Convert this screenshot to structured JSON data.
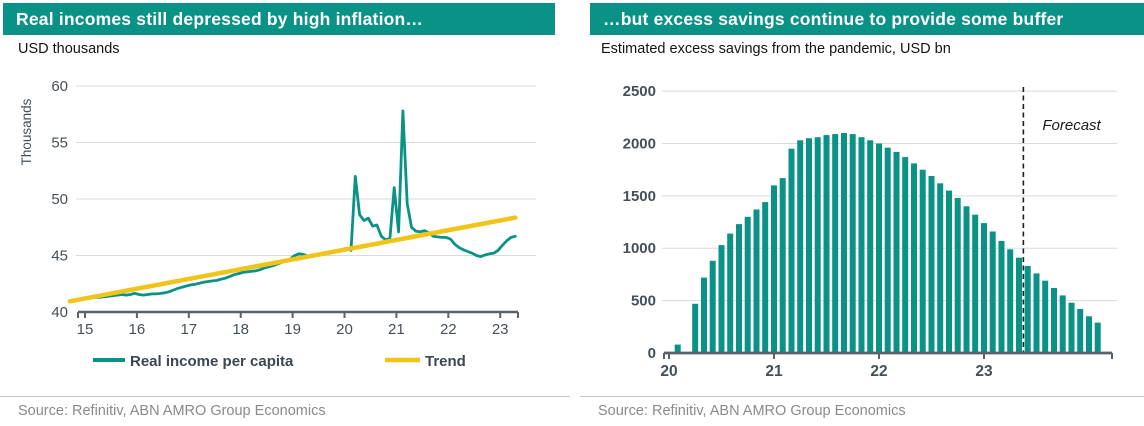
{
  "colors": {
    "teal": "#0A9287",
    "yellow": "#F0C418",
    "grid": "#DADADA",
    "axis": "#5A6169",
    "tick_text": "#454F58",
    "forecast_line": "#1E1E1E"
  },
  "left_panel": {
    "title": "Real incomes still depressed by high inflation…",
    "subtitle": "USD thousands",
    "source": "Source: Refinitiv, ABN AMRO Group Economics"
  },
  "right_panel": {
    "title": "…but excess savings continue to provide some buffer",
    "subtitle": "Estimated excess savings from the pandemic, USD bn",
    "source": "Source: Refinitiv, ABN AMRO Group Economics"
  },
  "chart_data": [
    {
      "type": "line",
      "title": "Real incomes still depressed by high inflation…",
      "subtitle": "USD thousands",
      "ylabel": "Thousands",
      "ylim": [
        40,
        60
      ],
      "yticks": [
        40,
        45,
        50,
        55,
        60
      ],
      "xticks": [
        15,
        16,
        17,
        18,
        19,
        20,
        21,
        22,
        23
      ],
      "grid": true,
      "legend_position": "bottom",
      "series": [
        {
          "name": "Real income per capita",
          "color": "#0A9287",
          "x_start": 14.7083,
          "x_step": 0.083333,
          "values": [
            41.0,
            41.05,
            41.1,
            41.15,
            41.2,
            41.25,
            41.3,
            41.3,
            41.35,
            41.4,
            41.45,
            41.5,
            41.55,
            41.5,
            41.55,
            41.65,
            41.55,
            41.5,
            41.55,
            41.6,
            41.6,
            41.65,
            41.7,
            41.8,
            41.95,
            42.1,
            42.2,
            42.3,
            42.4,
            42.45,
            42.55,
            42.65,
            42.7,
            42.75,
            42.8,
            42.9,
            43.0,
            43.15,
            43.3,
            43.4,
            43.5,
            43.55,
            43.6,
            43.65,
            43.75,
            43.9,
            44.0,
            44.1,
            44.25,
            44.4,
            44.55,
            44.7,
            45.0,
            45.15,
            45.1,
            44.95,
            44.9,
            45.0,
            45.15,
            45.25,
            45.3,
            45.35,
            45.45,
            45.55,
            45.65,
            45.45,
            52.0,
            48.6,
            48.1,
            48.3,
            47.6,
            47.7,
            46.7,
            46.4,
            46.5,
            51.0,
            47.1,
            57.8,
            49.6,
            47.5,
            47.15,
            47.1,
            47.2,
            47.0,
            46.7,
            46.65,
            46.6,
            46.6,
            46.45,
            46.0,
            45.7,
            45.5,
            45.35,
            45.2,
            45.0,
            44.9,
            45.05,
            45.15,
            45.2,
            45.45,
            45.9,
            46.3,
            46.6,
            46.7
          ]
        },
        {
          "name": "Trend",
          "color": "#F0C418",
          "x_start": 14.7083,
          "x_step": 8.5834,
          "values": [
            40.95,
            48.35
          ]
        }
      ]
    },
    {
      "type": "bar",
      "title": "…but excess savings continue to provide some buffer",
      "subtitle": "Estimated excess savings from the pandemic, USD bn",
      "ylim": [
        0,
        2500
      ],
      "yticks": [
        0,
        500,
        1000,
        1500,
        2000,
        2500
      ],
      "xticks": [
        20,
        21,
        22,
        23
      ],
      "grid": true,
      "bar_color": "#0A9287",
      "x_start": 20.0833,
      "x_step": 0.083333,
      "values": [
        80,
        0,
        470,
        720,
        880,
        1030,
        1140,
        1230,
        1300,
        1370,
        1440,
        1600,
        1670,
        1950,
        2030,
        2050,
        2060,
        2080,
        2090,
        2100,
        2090,
        2060,
        2030,
        2000,
        1960,
        1920,
        1870,
        1810,
        1750,
        1690,
        1620,
        1550,
        1480,
        1400,
        1320,
        1240,
        1160,
        1070,
        990,
        910,
        830,
        760,
        690,
        620,
        550,
        480,
        420,
        350,
        290
      ],
      "forecast_start_index": 40,
      "annotation": "Forecast"
    }
  ]
}
